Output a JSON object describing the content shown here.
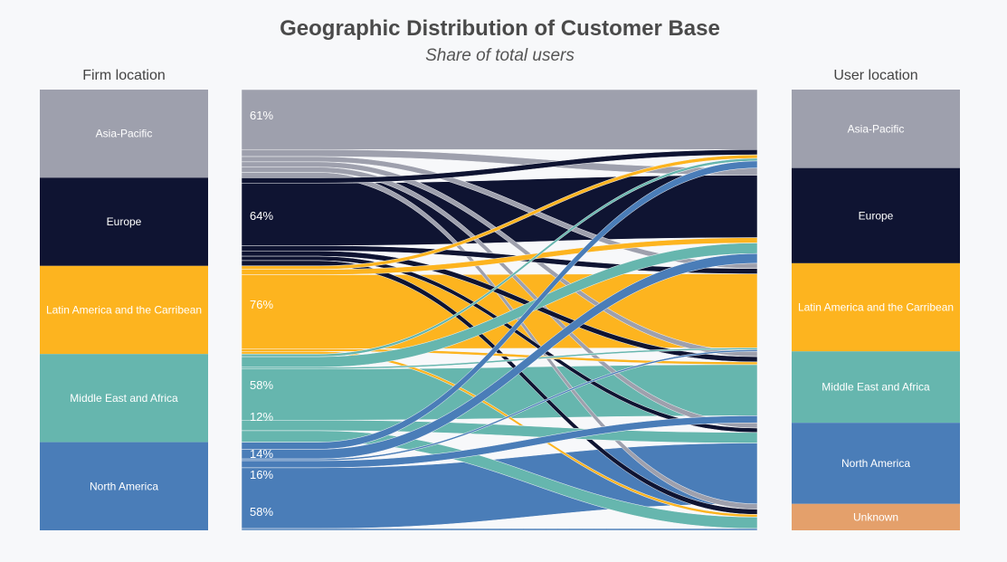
{
  "title": "Geographic Distribution of Customer Base",
  "subtitle": "Share of total users",
  "left_header": "Firm location",
  "right_header": "User location",
  "colors": {
    "Asia-Pacific": "#9ea0ad",
    "Europe": "#0f1432",
    "Latin America and the Carribean": "#fdb41f",
    "Middle East and Africa": "#66b6ae",
    "North America": "#4a7db8",
    "Unknown": "#e4a06b"
  },
  "chart_data": {
    "type": "sankey",
    "title": "Geographic Distribution of Customer Base",
    "subtitle": "Share of total users",
    "left_nodes": [
      {
        "name": "Asia-Pacific",
        "value": 20
      },
      {
        "name": "Europe",
        "value": 20
      },
      {
        "name": "Latin America and the Carribean",
        "value": 20
      },
      {
        "name": "Middle East and Africa",
        "value": 20
      },
      {
        "name": "North America",
        "value": 20
      }
    ],
    "right_nodes": [
      {
        "name": "Asia-Pacific",
        "value": 17.8
      },
      {
        "name": "Europe",
        "value": 21.6
      },
      {
        "name": "Latin America and the Carribean",
        "value": 20
      },
      {
        "name": "Middle East and Africa",
        "value": 16.2
      },
      {
        "name": "North America",
        "value": 18.4
      },
      {
        "name": "Unknown",
        "value": 6
      }
    ],
    "links": [
      {
        "source": "Asia-Pacific",
        "target": "Asia-Pacific",
        "value": 13.6
      },
      {
        "source": "Asia-Pacific",
        "target": "Europe",
        "value": 1.6
      },
      {
        "source": "Asia-Pacific",
        "target": "Latin America and the Carribean",
        "value": 1.2
      },
      {
        "source": "Asia-Pacific",
        "target": "Middle East and Africa",
        "value": 1.2
      },
      {
        "source": "Asia-Pacific",
        "target": "North America",
        "value": 1.2
      },
      {
        "source": "Asia-Pacific",
        "target": "Unknown",
        "value": 1.2
      },
      {
        "source": "Europe",
        "target": "Asia-Pacific",
        "value": 1.2
      },
      {
        "source": "Europe",
        "target": "Europe",
        "value": 14.2
      },
      {
        "source": "Europe",
        "target": "Latin America and the Carribean",
        "value": 1.2
      },
      {
        "source": "Europe",
        "target": "Middle East and Africa",
        "value": 1.2
      },
      {
        "source": "Europe",
        "target": "North America",
        "value": 1.0
      },
      {
        "source": "Europe",
        "target": "Unknown",
        "value": 1.2
      },
      {
        "source": "Latin America and the Carribean",
        "target": "Asia-Pacific",
        "value": 0.8
      },
      {
        "source": "Latin America and the Carribean",
        "target": "Europe",
        "value": 1.2
      },
      {
        "source": "Latin America and the Carribean",
        "target": "Latin America and the Carribean",
        "value": 16.8
      },
      {
        "source": "Latin America and the Carribean",
        "target": "Middle East and Africa",
        "value": 0.6
      },
      {
        "source": "Latin America and the Carribean",
        "target": "Unknown",
        "value": 0.6
      },
      {
        "source": "Middle East and Africa",
        "target": "Asia-Pacific",
        "value": 0.6
      },
      {
        "source": "Middle East and Africa",
        "target": "Europe",
        "value": 2.4
      },
      {
        "source": "Middle East and Africa",
        "target": "Latin America and the Carribean",
        "value": 0.4
      },
      {
        "source": "Middle East and Africa",
        "target": "Middle East and Africa",
        "value": 11.6
      },
      {
        "source": "Middle East and Africa",
        "target": "North America",
        "value": 2.4
      },
      {
        "source": "Middle East and Africa",
        "target": "Unknown",
        "value": 2.6
      },
      {
        "source": "North America",
        "target": "Asia-Pacific",
        "value": 1.6
      },
      {
        "source": "North America",
        "target": "Europe",
        "value": 2.2
      },
      {
        "source": "North America",
        "target": "Latin America and the Carribean",
        "value": 0.4
      },
      {
        "source": "North America",
        "target": "Middle East and Africa",
        "value": 1.6
      },
      {
        "source": "North America",
        "target": "North America",
        "value": 13.8
      },
      {
        "source": "North America",
        "target": "Unknown",
        "value": 0.4
      }
    ],
    "annotations": [
      "61%",
      "64%",
      "76%",
      "58%",
      "12%",
      "14%",
      "16%",
      "58%"
    ]
  }
}
